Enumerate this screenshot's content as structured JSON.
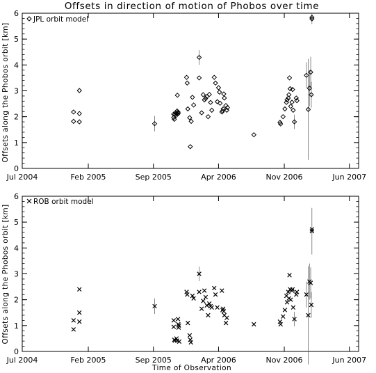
{
  "title": "Offsets in direction of motion of Phobos over time",
  "chart_data": [
    {
      "type": "scatter",
      "legend": "JPL orbit model",
      "marker": "diamond",
      "ylabel": "Offsets along the Phobos orbit [km]",
      "xlabel": "",
      "ylim": [
        0,
        6
      ],
      "yticks": [
        "0",
        "1",
        "2",
        "3",
        "4",
        "5",
        "6"
      ],
      "xlim": [
        "2004-07-01",
        "2007-07-01"
      ],
      "xticks": [
        {
          "label": "Jul 2004",
          "date": "2004-07-01"
        },
        {
          "label": "Feb 2005",
          "date": "2005-02-01"
        },
        {
          "label": "Sep 2005",
          "date": "2005-09-01"
        },
        {
          "label": "Apr 2006",
          "date": "2006-04-01"
        },
        {
          "label": "Nov 2006",
          "date": "2006-11-01"
        },
        {
          "label": "Jun 2007",
          "date": "2007-06-01"
        }
      ],
      "points": [
        {
          "x": "2004-12-15",
          "y": 2.18
        },
        {
          "x": "2004-12-15",
          "y": 1.82
        },
        {
          "x": "2005-01-03",
          "y": 3.01
        },
        {
          "x": "2005-01-03",
          "y": 2.12
        },
        {
          "x": "2005-01-03",
          "y": 1.8
        },
        {
          "x": "2005-09-05",
          "y": 1.73,
          "err": 0.3
        },
        {
          "x": "2005-11-06",
          "y": 2.1
        },
        {
          "x": "2005-11-06",
          "y": 1.97
        },
        {
          "x": "2005-11-08",
          "y": 1.9
        },
        {
          "x": "2005-11-10",
          "y": 2.08
        },
        {
          "x": "2005-11-12",
          "y": 2.15
        },
        {
          "x": "2005-11-14",
          "y": 2.05
        },
        {
          "x": "2005-11-15",
          "y": 2.12
        },
        {
          "x": "2005-11-17",
          "y": 2.22
        },
        {
          "x": "2005-11-18",
          "y": 2.83
        },
        {
          "x": "2005-11-19",
          "y": 2.1
        },
        {
          "x": "2005-11-20",
          "y": 2.18
        },
        {
          "x": "2005-11-21",
          "y": 2.14
        },
        {
          "x": "2005-12-18",
          "y": 3.52
        },
        {
          "x": "2005-12-20",
          "y": 3.3
        },
        {
          "x": "2005-12-22",
          "y": 2.3
        },
        {
          "x": "2005-12-28",
          "y": 1.96
        },
        {
          "x": "2005-12-30",
          "y": 0.84
        },
        {
          "x": "2006-01-02",
          "y": 1.82
        },
        {
          "x": "2006-01-06",
          "y": 2.75
        },
        {
          "x": "2006-01-10",
          "y": 2.45
        },
        {
          "x": "2006-01-28",
          "y": 4.29,
          "err": 0.28
        },
        {
          "x": "2006-01-28",
          "y": 3.5
        },
        {
          "x": "2006-02-05",
          "y": 2.15
        },
        {
          "x": "2006-02-10",
          "y": 2.85
        },
        {
          "x": "2006-02-14",
          "y": 2.65
        },
        {
          "x": "2006-02-18",
          "y": 2.7
        },
        {
          "x": "2006-02-22",
          "y": 2.78
        },
        {
          "x": "2006-02-26",
          "y": 2.0
        },
        {
          "x": "2006-03-02",
          "y": 2.86
        },
        {
          "x": "2006-03-06",
          "y": 2.55
        },
        {
          "x": "2006-03-10",
          "y": 2.25
        },
        {
          "x": "2006-03-18",
          "y": 3.52
        },
        {
          "x": "2006-03-22",
          "y": 3.3
        },
        {
          "x": "2006-03-28",
          "y": 2.58
        },
        {
          "x": "2006-04-01",
          "y": 3.12
        },
        {
          "x": "2006-04-04",
          "y": 2.95
        },
        {
          "x": "2006-04-06",
          "y": 2.52
        },
        {
          "x": "2006-04-12",
          "y": 2.18
        },
        {
          "x": "2006-04-14",
          "y": 2.22
        },
        {
          "x": "2006-04-16",
          "y": 2.3
        },
        {
          "x": "2006-04-18",
          "y": 2.88
        },
        {
          "x": "2006-04-20",
          "y": 2.72
        },
        {
          "x": "2006-04-25",
          "y": 2.43
        },
        {
          "x": "2006-04-28",
          "y": 2.25
        },
        {
          "x": "2006-04-30",
          "y": 2.35
        },
        {
          "x": "2006-07-25",
          "y": 1.3
        },
        {
          "x": "2006-10-18",
          "y": 1.78
        },
        {
          "x": "2006-10-20",
          "y": 1.72
        },
        {
          "x": "2006-10-28",
          "y": 2.0
        },
        {
          "x": "2006-11-03",
          "y": 2.3
        },
        {
          "x": "2006-11-08",
          "y": 2.55
        },
        {
          "x": "2006-11-10",
          "y": 2.65
        },
        {
          "x": "2006-11-14",
          "y": 2.72
        },
        {
          "x": "2006-11-16",
          "y": 2.85
        },
        {
          "x": "2006-11-18",
          "y": 3.5
        },
        {
          "x": "2006-11-20",
          "y": 3.08
        },
        {
          "x": "2006-11-22",
          "y": 2.4
        },
        {
          "x": "2006-11-26",
          "y": 2.56
        },
        {
          "x": "2006-11-28",
          "y": 3.05
        },
        {
          "x": "2006-11-30",
          "y": 2.25
        },
        {
          "x": "2006-12-04",
          "y": 1.8,
          "err": 0.28
        },
        {
          "x": "2006-12-10",
          "y": 2.72
        },
        {
          "x": "2006-12-12",
          "y": 2.62
        },
        {
          "x": "2007-01-12",
          "y": 3.6,
          "err": 0.5
        },
        {
          "x": "2007-01-18",
          "y": 2.28,
          "err": 1.95
        },
        {
          "x": "2007-01-22",
          "y": 3.1,
          "err": 0.7
        },
        {
          "x": "2007-01-26",
          "y": 3.72,
          "err": 0.6
        },
        {
          "x": "2007-01-28",
          "y": 2.85,
          "err": 0.5
        },
        {
          "x": "2007-01-30",
          "y": 5.78,
          "err": 0.2
        },
        {
          "x": "2007-01-30",
          "y": 5.84
        }
      ]
    },
    {
      "type": "scatter",
      "legend": "ROB orbit model",
      "marker": "cross",
      "ylabel": "Offsets along the Phobos orbit [km]",
      "xlabel": "Time of Observation",
      "ylim": [
        0,
        6
      ],
      "yticks": [
        "0",
        "1",
        "2",
        "3",
        "4",
        "5",
        "6"
      ],
      "xlim": [
        "2004-07-01",
        "2007-07-01"
      ],
      "xticks": [
        {
          "label": "Jul 2004",
          "date": "2004-07-01"
        },
        {
          "label": "Feb 2005",
          "date": "2005-02-01"
        },
        {
          "label": "Sep 2005",
          "date": "2005-09-01"
        },
        {
          "label": "Apr 2006",
          "date": "2006-04-01"
        },
        {
          "label": "Nov 2006",
          "date": "2006-11-01"
        },
        {
          "label": "Jun 2007",
          "date": "2007-06-01"
        }
      ],
      "points": [
        {
          "x": "2004-12-15",
          "y": 1.2
        },
        {
          "x": "2004-12-15",
          "y": 0.85
        },
        {
          "x": "2005-01-03",
          "y": 2.4
        },
        {
          "x": "2005-01-03",
          "y": 1.5
        },
        {
          "x": "2005-01-03",
          "y": 1.15
        },
        {
          "x": "2005-09-05",
          "y": 1.75,
          "err": 0.3
        },
        {
          "x": "2005-11-06",
          "y": 1.2
        },
        {
          "x": "2005-11-06",
          "y": 0.95
        },
        {
          "x": "2005-11-08",
          "y": 0.45
        },
        {
          "x": "2005-11-10",
          "y": 0.42
        },
        {
          "x": "2005-11-15",
          "y": 0.5
        },
        {
          "x": "2005-11-17",
          "y": 0.42
        },
        {
          "x": "2005-11-20",
          "y": 1.25
        },
        {
          "x": "2005-11-21",
          "y": 1.05
        },
        {
          "x": "2005-11-22",
          "y": 0.92
        },
        {
          "x": "2005-11-23",
          "y": 1.0
        },
        {
          "x": "2005-11-24",
          "y": 0.38
        },
        {
          "x": "2005-12-18",
          "y": 2.3
        },
        {
          "x": "2005-12-20",
          "y": 2.2
        },
        {
          "x": "2005-12-22",
          "y": 1.1
        },
        {
          "x": "2005-12-28",
          "y": 0.62
        },
        {
          "x": "2005-12-30",
          "y": 0.45
        },
        {
          "x": "2006-01-01",
          "y": 0.35
        },
        {
          "x": "2006-01-06",
          "y": 2.15
        },
        {
          "x": "2006-01-10",
          "y": 2.05
        },
        {
          "x": "2006-01-28",
          "y": 3.0,
          "err": 0.28
        },
        {
          "x": "2006-01-28",
          "y": 2.3
        },
        {
          "x": "2006-02-05",
          "y": 1.65
        },
        {
          "x": "2006-02-10",
          "y": 1.95
        },
        {
          "x": "2006-02-14",
          "y": 2.35
        },
        {
          "x": "2006-02-18",
          "y": 2.1
        },
        {
          "x": "2006-02-22",
          "y": 1.78
        },
        {
          "x": "2006-02-26",
          "y": 1.4
        },
        {
          "x": "2006-03-02",
          "y": 1.85
        },
        {
          "x": "2006-03-06",
          "y": 1.75
        },
        {
          "x": "2006-03-10",
          "y": 1.7
        },
        {
          "x": "2006-03-18",
          "y": 2.45
        },
        {
          "x": "2006-03-22",
          "y": 2.2
        },
        {
          "x": "2006-03-28",
          "y": 1.7
        },
        {
          "x": "2006-04-12",
          "y": 2.35
        },
        {
          "x": "2006-04-14",
          "y": 1.6
        },
        {
          "x": "2006-04-16",
          "y": 1.65
        },
        {
          "x": "2006-04-18",
          "y": 1.55
        },
        {
          "x": "2006-04-20",
          "y": 1.4
        },
        {
          "x": "2006-04-25",
          "y": 1.1
        },
        {
          "x": "2006-04-28",
          "y": 1.3
        },
        {
          "x": "2006-07-25",
          "y": 1.05
        },
        {
          "x": "2006-10-18",
          "y": 1.15
        },
        {
          "x": "2006-10-20",
          "y": 1.05
        },
        {
          "x": "2006-10-28",
          "y": 1.35
        },
        {
          "x": "2006-11-03",
          "y": 1.6
        },
        {
          "x": "2006-11-08",
          "y": 2.15
        },
        {
          "x": "2006-11-10",
          "y": 1.9
        },
        {
          "x": "2006-11-14",
          "y": 2.3
        },
        {
          "x": "2006-11-16",
          "y": 2.05
        },
        {
          "x": "2006-11-18",
          "y": 2.95
        },
        {
          "x": "2006-11-20",
          "y": 2.4
        },
        {
          "x": "2006-11-22",
          "y": 2.0
        },
        {
          "x": "2006-11-26",
          "y": 2.35
        },
        {
          "x": "2006-11-28",
          "y": 2.4
        },
        {
          "x": "2006-11-30",
          "y": 1.7
        },
        {
          "x": "2006-12-04",
          "y": 1.25,
          "err": 0.28
        },
        {
          "x": "2006-12-10",
          "y": 2.2
        },
        {
          "x": "2006-12-12",
          "y": 2.3
        },
        {
          "x": "2007-01-12",
          "y": 2.2,
          "err": 0.5
        },
        {
          "x": "2007-01-18",
          "y": 1.4,
          "err": 1.9
        },
        {
          "x": "2007-01-22",
          "y": 2.7,
          "err": 0.7
        },
        {
          "x": "2007-01-26",
          "y": 2.65,
          "err": 0.6
        },
        {
          "x": "2007-01-28",
          "y": 1.8,
          "err": 0.5
        },
        {
          "x": "2007-01-30",
          "y": 4.65,
          "err": 0.9
        },
        {
          "x": "2007-01-30",
          "y": 4.72
        }
      ]
    }
  ]
}
